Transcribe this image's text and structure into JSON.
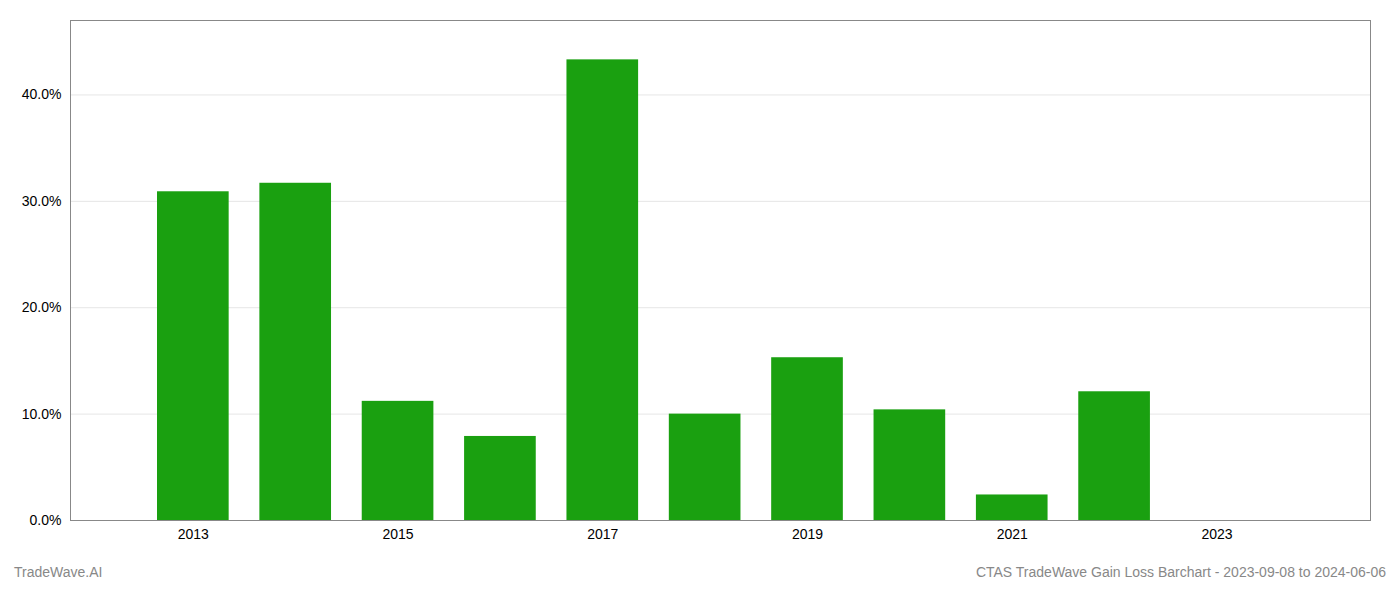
{
  "chart_data": {
    "type": "bar",
    "x": [
      2013,
      2014,
      2015,
      2016,
      2017,
      2018,
      2019,
      2020,
      2021,
      2022,
      2023
    ],
    "values": [
      0.309,
      0.317,
      0.112,
      0.079,
      0.433,
      0.1,
      0.153,
      0.104,
      0.024,
      0.121,
      0.0
    ],
    "color": "#1aa010",
    "xlim": [
      2011.8,
      2024.5
    ],
    "xticks": [
      2013,
      2015,
      2017,
      2019,
      2021,
      2023
    ],
    "ylim": [
      0,
      0.47
    ],
    "yticks": [
      {
        "value": 0.0,
        "label": "0.0%"
      },
      {
        "value": 0.1,
        "label": "10.0%"
      },
      {
        "value": 0.2,
        "label": "20.0%"
      },
      {
        "value": 0.3,
        "label": "30.0%"
      },
      {
        "value": 0.4,
        "label": "40.0%"
      }
    ],
    "grid": true,
    "annotations": [
      "TradeWave.AI",
      "CTAS TradeWave Gain Loss Barchart - 2023-09-08 to 2024-06-06"
    ]
  }
}
